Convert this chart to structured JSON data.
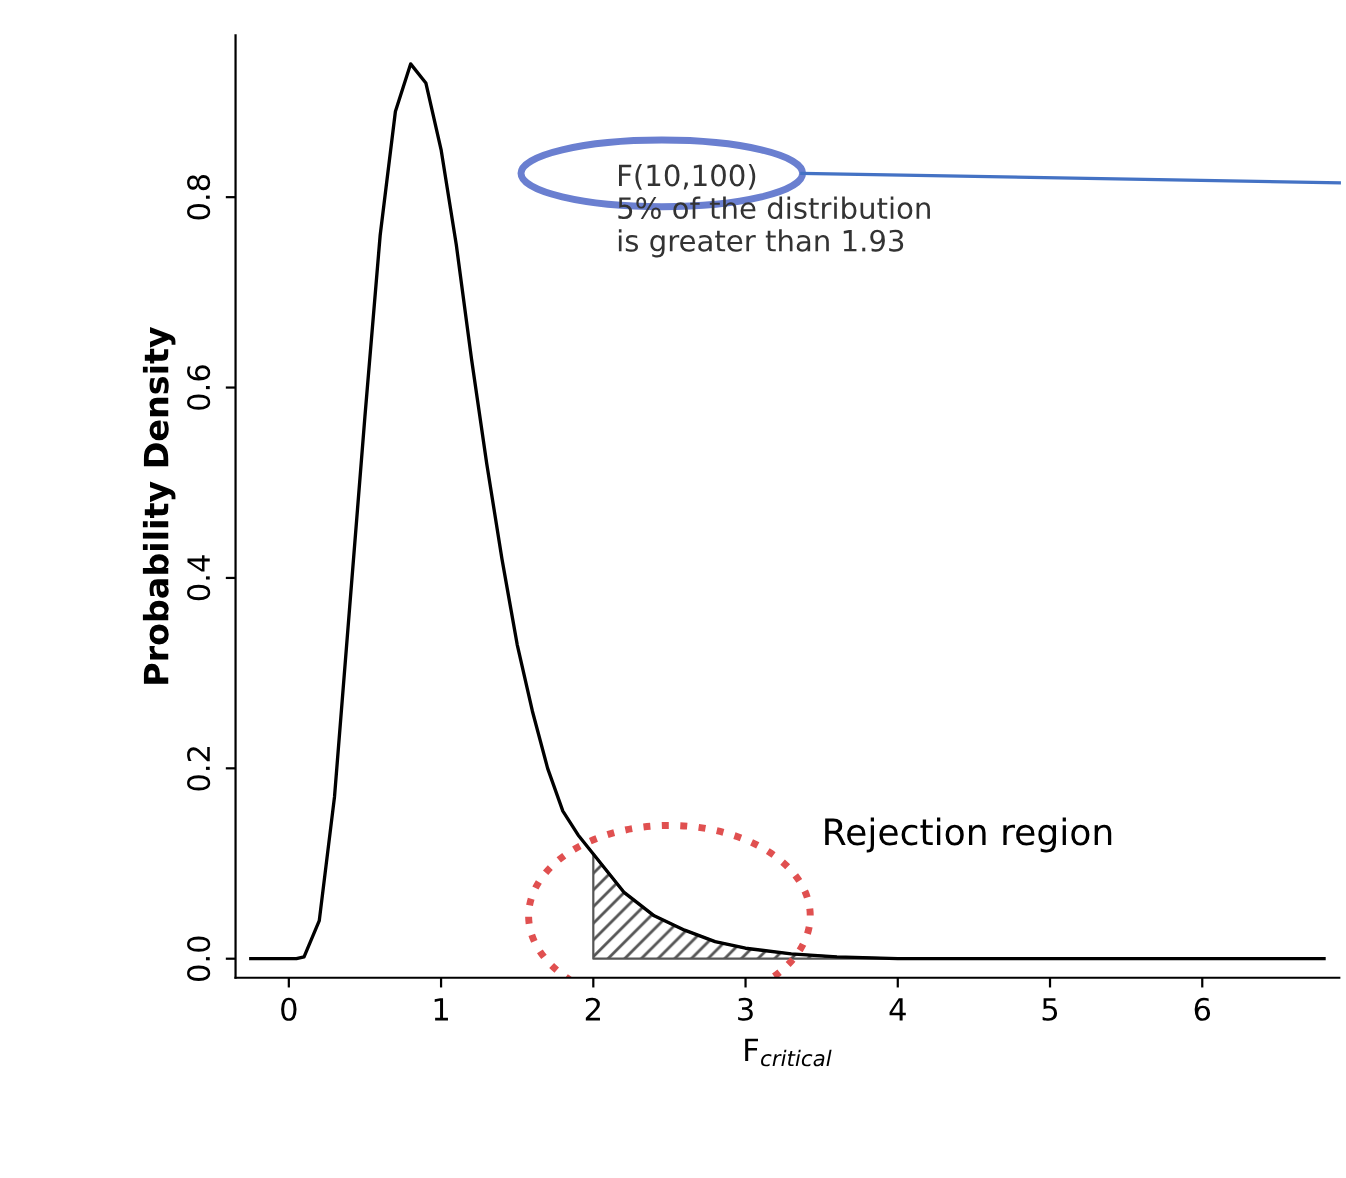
{
  "chart_data": {
    "type": "line",
    "xlabel": "F$_{critical}$",
    "ylabel": "Probability Density",
    "annotations": [
      "F(10,100)\n5% of the distribution\nis greater than 1.93",
      "Rejection region"
    ],
    "series": [
      {
        "color": "#000000",
        "x": [
          -0.25,
          0.05,
          0.1,
          0.2,
          0.3,
          0.4,
          0.5,
          0.6,
          0.7,
          0.8,
          0.9,
          1.0,
          1.1,
          1.2,
          1.3,
          1.4,
          1.5,
          1.6,
          1.7,
          1.8,
          1.9,
          2.0,
          2.2,
          2.4,
          2.6,
          2.8,
          3.0,
          3.3,
          3.6,
          4.0,
          4.5,
          5.0,
          6.0,
          6.8
        ],
        "values": [
          0,
          0,
          0.002,
          0.04,
          0.17,
          0.37,
          0.57,
          0.76,
          0.89,
          0.94,
          0.92,
          0.85,
          0.75,
          0.63,
          0.52,
          0.42,
          0.33,
          0.26,
          0.2,
          0.155,
          0.13,
          0.11,
          0.07,
          0.045,
          0.03,
          0.018,
          0.011,
          0.005,
          0.002,
          0,
          0,
          0,
          0,
          0
        ]
      },
      {
        "type": "area",
        "color": "#555555",
        "x": [
          2.0,
          2.2,
          2.4,
          2.6,
          2.8,
          3.0,
          3.3,
          3.6,
          4.0
        ],
        "values": [
          0.11,
          0.07,
          0.045,
          0.03,
          0.018,
          0.011,
          0.005,
          0.002,
          0
        ]
      }
    ],
    "xlim": [
      -0.35,
      6.9
    ],
    "ylim": [
      -0.02,
      0.97
    ],
    "xticks": [
      0,
      1,
      2,
      3,
      4,
      5,
      6
    ],
    "yticks": [
      {
        "value": 0,
        "label": "0.0"
      },
      0.2,
      0.4,
      0.6,
      0.8
    ],
    "grid": false,
    "line_style": "solid"
  }
}
